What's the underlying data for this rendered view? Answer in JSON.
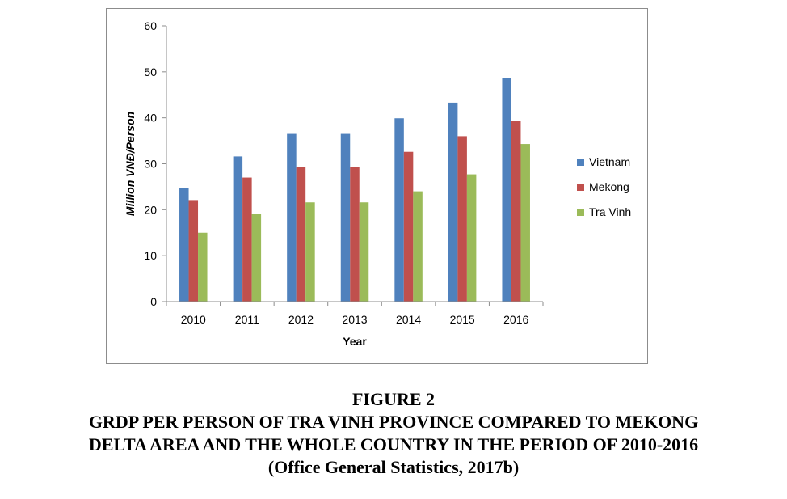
{
  "chart_data": {
    "type": "bar",
    "categories": [
      "2010",
      "2011",
      "2012",
      "2013",
      "2014",
      "2015",
      "2016"
    ],
    "series": [
      {
        "name": "Vietnam",
        "color": "#4f81bd",
        "values": [
          24.8,
          31.6,
          36.5,
          36.5,
          39.9,
          43.3,
          48.6
        ]
      },
      {
        "name": "Mekong",
        "color": "#c0504d",
        "values": [
          22.1,
          27.0,
          29.3,
          29.3,
          32.6,
          36.0,
          39.4
        ]
      },
      {
        "name": "Tra Vinh",
        "color": "#9bbb59",
        "values": [
          15.0,
          19.1,
          21.6,
          21.6,
          24.0,
          27.7,
          34.3
        ]
      }
    ],
    "xlabel": "Year",
    "ylabel": "Million VNĐ/Person",
    "ylim": [
      0,
      60
    ],
    "yticks": [
      0,
      10,
      20,
      30,
      40,
      50,
      60
    ],
    "grid": false,
    "legend_position": "right"
  },
  "caption": {
    "figure_label": "FIGURE 2",
    "line1": "GRDP PER PERSON OF TRA VINH PROVINCE COMPARED TO MEKONG",
    "line2": "DELTA AREA AND THE WHOLE COUNTRY IN THE PERIOD OF 2010-2016",
    "source": "(Office General Statistics, 2017b)"
  }
}
